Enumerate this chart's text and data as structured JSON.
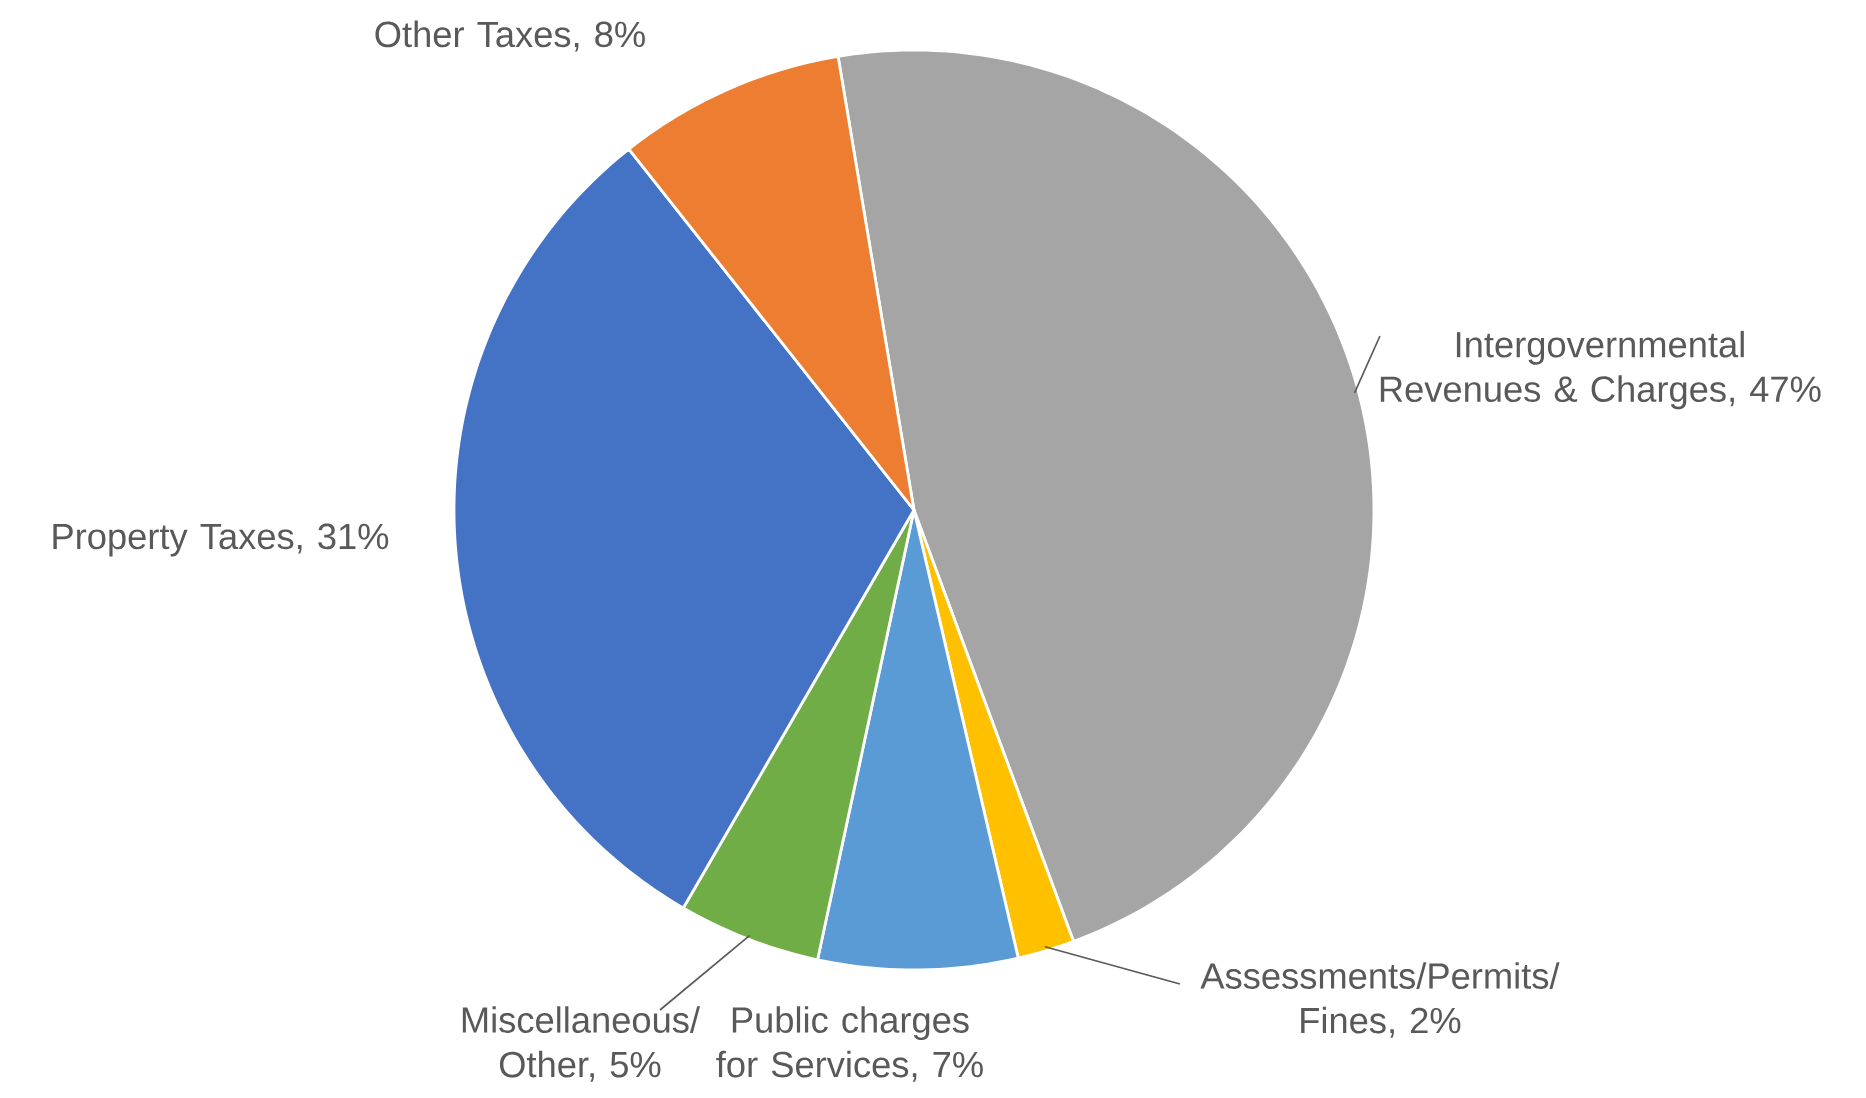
{
  "chart_data": {
    "type": "pie",
    "categories": [
      "Intergovernmental Revenues & Charges, 47%",
      "Assessments/Permits/ Fines, 2%",
      "Public charges for Services, 7%",
      "Miscellaneous/ Other, 5%",
      "Property Taxes, 31%",
      "Other Taxes, 8%"
    ],
    "values": [
      47,
      2,
      7,
      5,
      31,
      8
    ],
    "colors": [
      "#a5a5a5",
      "#ffc000",
      "#5b9bd5",
      "#70ad47",
      "#4472c4",
      "#ed7d31"
    ]
  }
}
